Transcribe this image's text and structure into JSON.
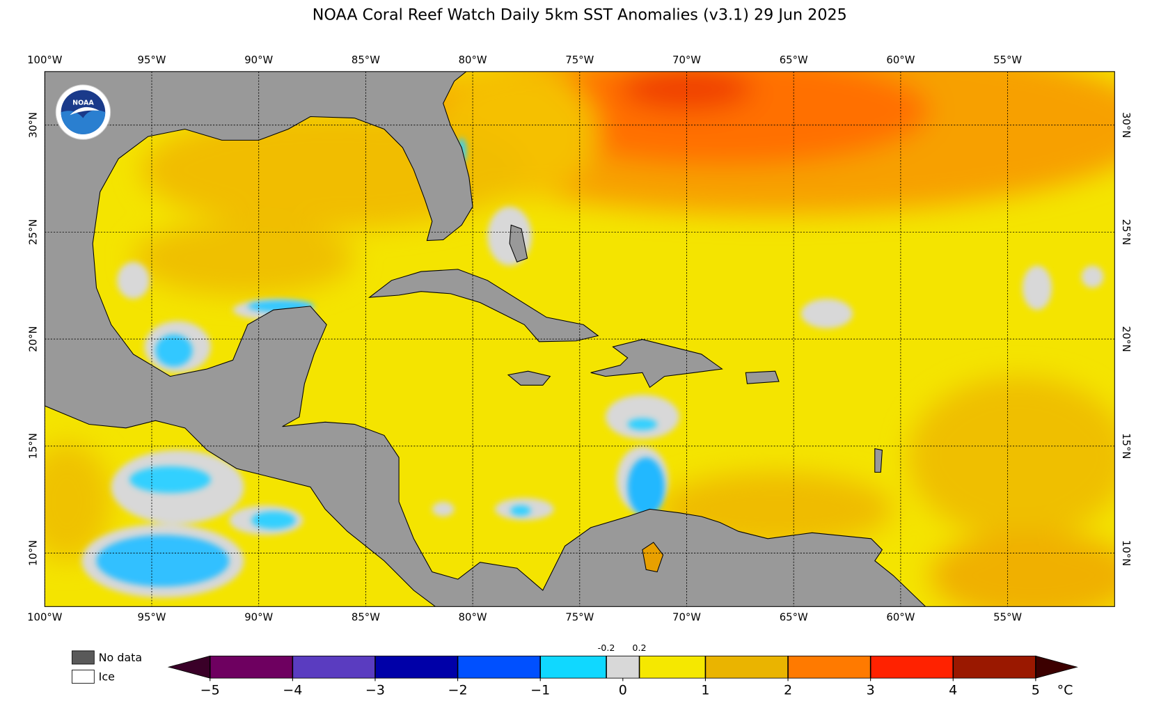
{
  "title": "NOAA Coral Reef Watch Daily 5km SST Anomalies  (v3.1)   29 Jun 2025",
  "map": {
    "lon_range": [
      -100,
      -50
    ],
    "lat_range": [
      7.5,
      32.5
    ],
    "lon_ticks": [
      {
        "value": -100,
        "label": "100°W"
      },
      {
        "value": -95,
        "label": "95°W"
      },
      {
        "value": -90,
        "label": "90°W"
      },
      {
        "value": -85,
        "label": "85°W"
      },
      {
        "value": -80,
        "label": "80°W"
      },
      {
        "value": -75,
        "label": "75°W"
      },
      {
        "value": -70,
        "label": "70°W"
      },
      {
        "value": -65,
        "label": "65°W"
      },
      {
        "value": -60,
        "label": "60°W"
      },
      {
        "value": -55,
        "label": "55°W"
      }
    ],
    "lat_ticks": [
      {
        "value": 10,
        "label": "10°N"
      },
      {
        "value": 15,
        "label": "15°N"
      },
      {
        "value": 20,
        "label": "20°N"
      },
      {
        "value": 25,
        "label": "25°N"
      },
      {
        "value": 30,
        "label": "30°N"
      }
    ],
    "grid": true
  },
  "colorbar": {
    "range": [
      -5,
      5
    ],
    "boundaries": [
      -5,
      -4,
      -3,
      -2,
      -1,
      -0.2,
      0.2,
      1,
      2,
      3,
      4,
      5
    ],
    "colors": [
      "#6e0060",
      "#5a3cc0",
      "#0000a8",
      "#0050ff",
      "#10d8ff",
      "#d8d8d8",
      "#f5e800",
      "#eab400",
      "#ff7a00",
      "#ff2200",
      "#9a1800"
    ],
    "under_color": "#3a0028",
    "over_color": "#3c0000",
    "ticks": [
      {
        "value": -5,
        "label": "−5"
      },
      {
        "value": -4,
        "label": "−4"
      },
      {
        "value": -3,
        "label": "−3"
      },
      {
        "value": -2,
        "label": "−2"
      },
      {
        "value": -1,
        "label": "−1"
      },
      0,
      1,
      2,
      3,
      4,
      5
    ],
    "minor_ticks": [
      -0.2,
      0.2
    ],
    "unit": "°C"
  },
  "legend": [
    {
      "label": "No data",
      "color": "#595959"
    },
    {
      "label": "Ice",
      "color": "#ffffff"
    }
  ]
}
